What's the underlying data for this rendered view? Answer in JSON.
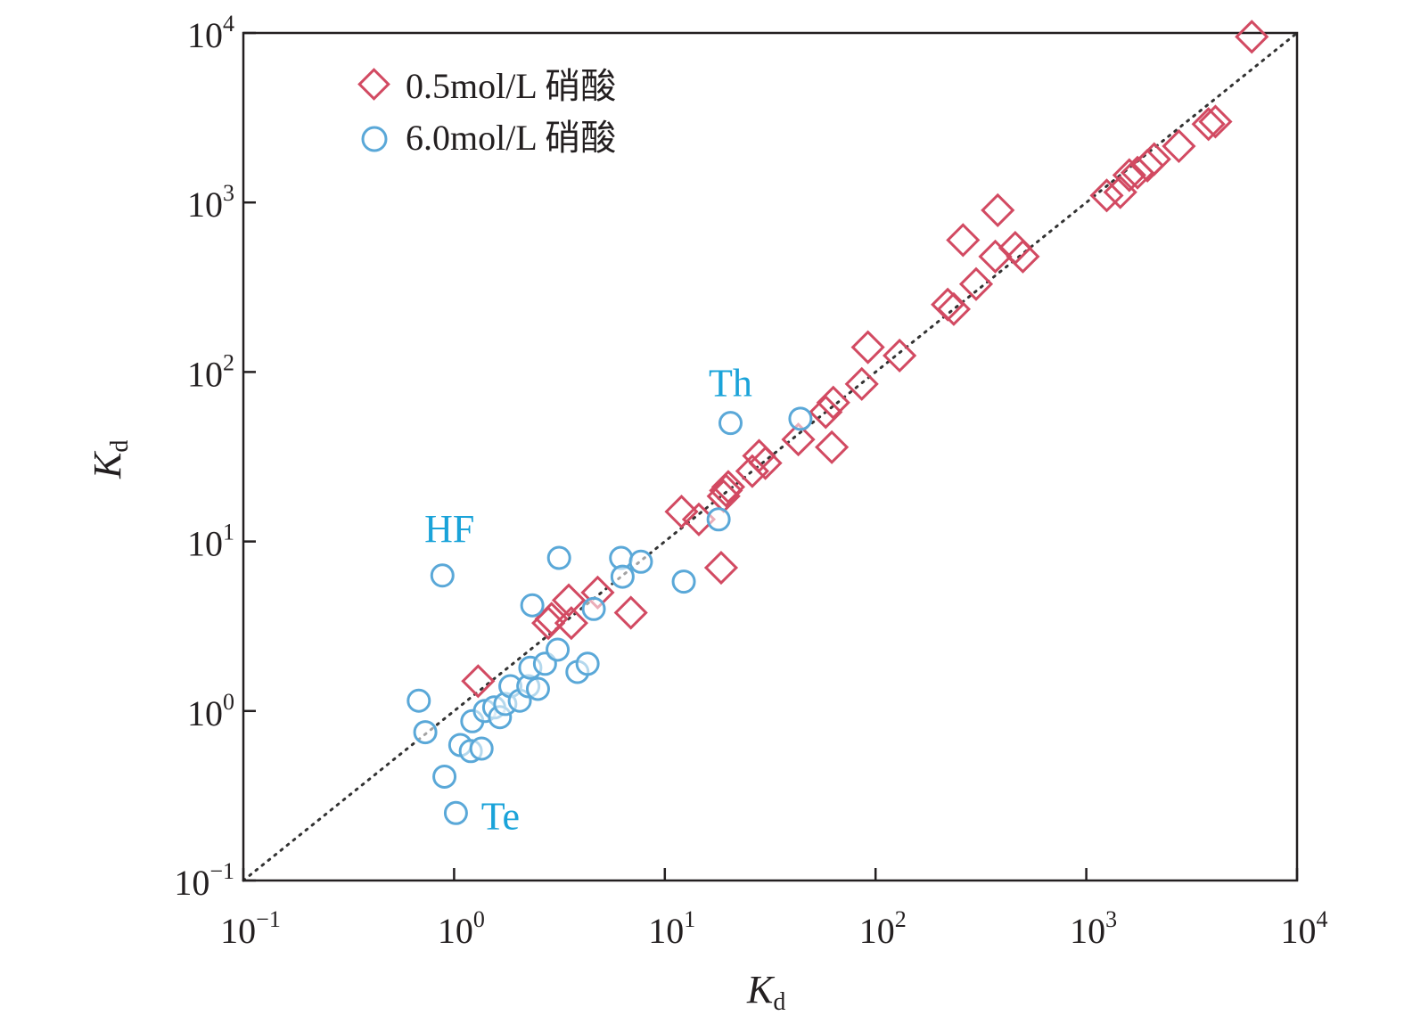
{
  "chart_data": {
    "type": "scatter",
    "xscale": "log",
    "yscale": "log",
    "xlim": [
      0.1,
      10000
    ],
    "ylim": [
      0.1,
      10000
    ],
    "xlabel": {
      "main": "K",
      "sub": "d"
    },
    "ylabel": {
      "main": "K",
      "sub": "d"
    },
    "ticks": [
      {
        "base": "10",
        "exp": "−1",
        "value": 0.1
      },
      {
        "base": "10",
        "exp": "0",
        "value": 1
      },
      {
        "base": "10",
        "exp": "1",
        "value": 10
      },
      {
        "base": "10",
        "exp": "2",
        "value": 100
      },
      {
        "base": "10",
        "exp": "3",
        "value": 1000
      },
      {
        "base": "10",
        "exp": "4",
        "value": 10000
      }
    ],
    "reference_line": "y = x (dotted)",
    "legend_position": "top-left",
    "series": [
      {
        "name": "0.5mol/L 硝酸",
        "marker": "diamond",
        "color": "#d24a62",
        "points": [
          [
            1.3,
            1.5
          ],
          [
            2.8,
            3.3
          ],
          [
            2.9,
            3.5
          ],
          [
            3.6,
            3.3
          ],
          [
            3.5,
            4.5
          ],
          [
            4.8,
            5.0
          ],
          [
            6.9,
            3.8
          ],
          [
            12.0,
            15.0
          ],
          [
            14.5,
            13.5
          ],
          [
            18.5,
            7.0
          ],
          [
            19.5,
            20.0
          ],
          [
            20.0,
            21.0
          ],
          [
            19.0,
            18.5
          ],
          [
            26.0,
            26.0
          ],
          [
            28.0,
            32.0
          ],
          [
            30.0,
            29.0
          ],
          [
            43.0,
            40.0
          ],
          [
            58.0,
            58.0
          ],
          [
            62.0,
            36.0
          ],
          [
            63.0,
            66.0
          ],
          [
            86.0,
            85.0
          ],
          [
            92.0,
            140.0
          ],
          [
            130.0,
            125.0
          ],
          [
            220.0,
            250.0
          ],
          [
            235.0,
            235.0
          ],
          [
            260.0,
            600.0
          ],
          [
            300.0,
            330.0
          ],
          [
            370.0,
            480.0
          ],
          [
            380.0,
            900.0
          ],
          [
            460.0,
            540.0
          ],
          [
            500.0,
            480.0
          ],
          [
            1250.0,
            1100.0
          ],
          [
            1450.0,
            1150.0
          ],
          [
            1600.0,
            1450.0
          ],
          [
            1750.0,
            1500.0
          ],
          [
            1950.0,
            1650.0
          ],
          [
            2100.0,
            1800.0
          ],
          [
            2750.0,
            2150.0
          ],
          [
            3800.0,
            2900.0
          ],
          [
            4100.0,
            3000.0
          ],
          [
            6100.0,
            9500.0
          ]
        ]
      },
      {
        "name": "6.0mol/L 硝酸",
        "marker": "circle",
        "color": "#5aa8d8",
        "points": [
          [
            0.68,
            1.15
          ],
          [
            0.73,
            0.75
          ],
          [
            0.88,
            6.3
          ],
          [
            0.9,
            0.41
          ],
          [
            1.02,
            0.25
          ],
          [
            1.07,
            0.63
          ],
          [
            1.2,
            0.58
          ],
          [
            1.22,
            0.87
          ],
          [
            1.35,
            0.6
          ],
          [
            1.4,
            1.0
          ],
          [
            1.55,
            1.05
          ],
          [
            1.65,
            0.92
          ],
          [
            1.75,
            1.1
          ],
          [
            1.85,
            1.4
          ],
          [
            2.05,
            1.15
          ],
          [
            2.25,
            1.4
          ],
          [
            2.3,
            1.8
          ],
          [
            2.35,
            4.2
          ],
          [
            2.5,
            1.35
          ],
          [
            2.7,
            1.9
          ],
          [
            3.1,
            2.3
          ],
          [
            3.15,
            8.0
          ],
          [
            3.85,
            1.7
          ],
          [
            4.3,
            1.9
          ],
          [
            4.6,
            4.0
          ],
          [
            6.2,
            8.0
          ],
          [
            6.3,
            6.2
          ],
          [
            7.7,
            7.6
          ],
          [
            12.3,
            5.8
          ],
          [
            18.0,
            13.5
          ],
          [
            20.5,
            50.0
          ],
          [
            44.0,
            53.0
          ]
        ]
      }
    ],
    "annotations": [
      {
        "text": "HF",
        "x": 0.88,
        "y": 6.3
      },
      {
        "text": "Th",
        "x": 20.5,
        "y": 50.0
      },
      {
        "text": "Te",
        "x": 1.02,
        "y": 0.25
      }
    ]
  }
}
